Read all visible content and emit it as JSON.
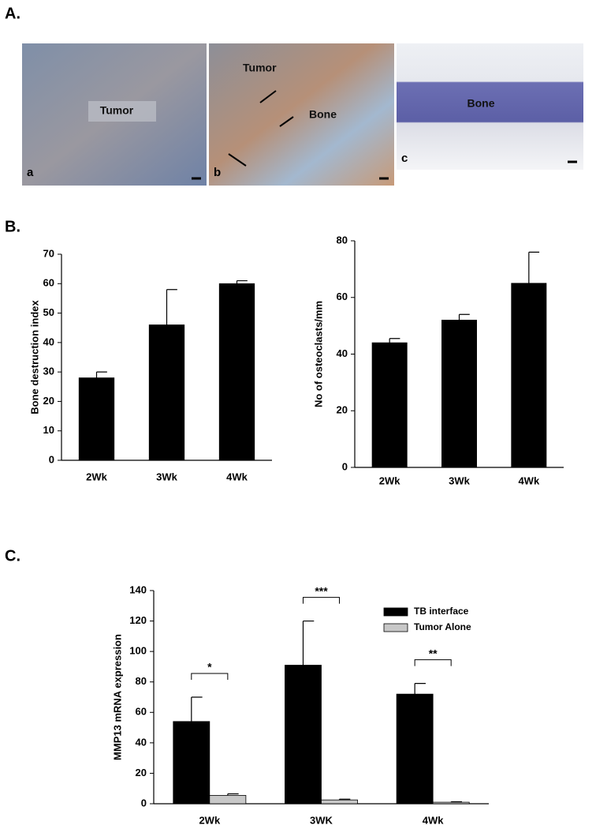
{
  "figure": {
    "panel_labels": [
      "A.",
      "B.",
      "C."
    ],
    "images": [
      {
        "label": "a",
        "texts": [
          "Tumor"
        ]
      },
      {
        "label": "b",
        "texts": [
          "Tumor",
          "Bone"
        ]
      },
      {
        "label": "c",
        "texts": [
          "Bone"
        ]
      }
    ]
  },
  "chart_data": [
    {
      "type": "bar",
      "y_label": "Bone destruction index",
      "categories": [
        "2Wk",
        "3Wk",
        "4Wk"
      ],
      "values": [
        28,
        46,
        60
      ],
      "errors": [
        2,
        12,
        1
      ],
      "color": "#000000",
      "ylim": [
        0,
        70
      ],
      "yticks": [
        0,
        10,
        20,
        30,
        40,
        50,
        60,
        70
      ]
    },
    {
      "type": "bar",
      "y_label": "No of osteoclasts/mm",
      "categories": [
        "2Wk",
        "3Wk",
        "4Wk"
      ],
      "values": [
        44,
        52,
        65
      ],
      "errors": [
        1.5,
        2,
        11
      ],
      "color": "#000000",
      "ylim": [
        0,
        80
      ],
      "yticks": [
        0,
        20,
        40,
        60,
        80
      ]
    },
    {
      "type": "bar",
      "y_label": "MMP13 mRNA expression",
      "categories": [
        "2Wk",
        "3WK",
        "4Wk"
      ],
      "series": [
        {
          "name": "TB interface",
          "color": "#000000",
          "values": [
            54,
            91,
            72
          ],
          "errors": [
            16,
            29,
            7
          ]
        },
        {
          "name": "Tumor Alone",
          "color": "#c8c8c8",
          "values": [
            5.5,
            2.5,
            1
          ],
          "errors": [
            1,
            0.5,
            0.3
          ]
        }
      ],
      "annotations": [
        "*",
        "***",
        "**"
      ],
      "ylim": [
        0,
        140
      ],
      "yticks": [
        0,
        20,
        40,
        60,
        80,
        100,
        120,
        140
      ]
    }
  ]
}
